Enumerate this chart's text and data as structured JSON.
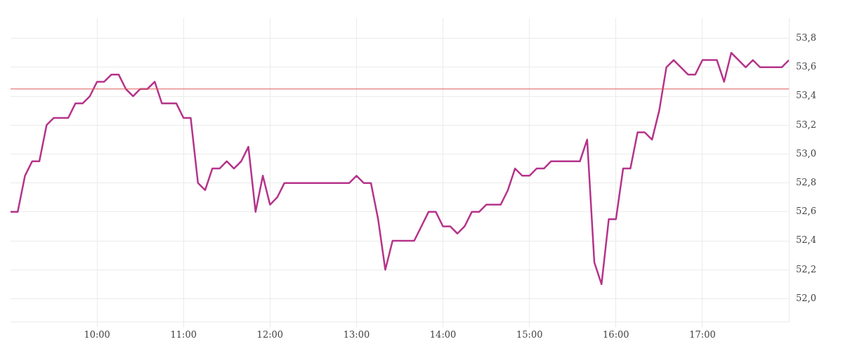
{
  "chart_data": {
    "type": "line",
    "x": [
      9,
      9.083,
      9.167,
      9.25,
      9.333,
      9.417,
      9.5,
      9.583,
      9.667,
      9.75,
      9.833,
      9.917,
      10,
      10.083,
      10.167,
      10.25,
      10.333,
      10.417,
      10.5,
      10.583,
      10.667,
      10.75,
      10.833,
      10.917,
      11,
      11.083,
      11.167,
      11.25,
      11.333,
      11.417,
      11.5,
      11.583,
      11.667,
      11.75,
      11.833,
      11.917,
      12,
      12.083,
      12.167,
      12.25,
      12.333,
      12.417,
      12.5,
      12.583,
      12.667,
      12.75,
      12.833,
      12.917,
      13,
      13.083,
      13.167,
      13.25,
      13.333,
      13.417,
      13.5,
      13.583,
      13.667,
      13.75,
      13.833,
      13.917,
      14,
      14.083,
      14.167,
      14.25,
      14.333,
      14.417,
      14.5,
      14.583,
      14.667,
      14.75,
      14.833,
      14.917,
      15,
      15.083,
      15.167,
      15.25,
      15.333,
      15.417,
      15.5,
      15.583,
      15.667,
      15.75,
      15.833,
      15.917,
      16,
      16.083,
      16.167,
      16.25,
      16.333,
      16.417,
      16.5,
      16.583,
      16.667,
      16.75,
      16.833,
      16.917,
      17,
      17.083,
      17.167,
      17.25,
      17.333,
      17.417,
      17.5,
      17.583,
      17.667,
      17.75,
      17.833,
      17.917,
      18
    ],
    "series": [
      {
        "color": "#b5338a",
        "values": [
          52.6,
          52.6,
          52.85,
          52.95,
          52.95,
          53.2,
          53.25,
          53.25,
          53.25,
          53.35,
          53.35,
          53.4,
          53.5,
          53.5,
          53.55,
          53.55,
          53.45,
          53.4,
          53.45,
          53.45,
          53.5,
          53.35,
          53.35,
          53.35,
          53.25,
          53.25,
          52.8,
          52.75,
          52.9,
          52.9,
          52.95,
          52.9,
          52.95,
          53.05,
          52.6,
          52.85,
          52.65,
          52.7,
          52.8,
          52.8,
          52.8,
          52.8,
          52.8,
          52.8,
          52.8,
          52.8,
          52.8,
          52.8,
          52.85,
          52.8,
          52.8,
          52.55,
          52.2,
          52.4,
          52.4,
          52.4,
          52.4,
          52.5,
          52.6,
          52.6,
          52.5,
          52.5,
          52.45,
          52.5,
          52.6,
          52.6,
          52.65,
          52.65,
          52.65,
          52.75,
          52.9,
          52.85,
          52.85,
          52.9,
          52.9,
          52.95,
          52.95,
          52.95,
          52.95,
          52.95,
          53.1,
          52.25,
          52.1,
          52.55,
          52.55,
          52.9,
          52.9,
          53.15,
          53.15,
          53.1,
          53.3,
          53.6,
          53.65,
          53.6,
          53.55,
          53.55,
          53.65,
          53.65,
          53.65,
          53.5,
          53.7,
          53.65,
          53.6,
          53.65,
          53.6,
          53.6,
          53.6,
          53.6,
          53.65
        ]
      }
    ],
    "xlim": [
      9,
      18
    ],
    "xticks": [
      {
        "value": 10,
        "label": "10:00"
      },
      {
        "value": 11,
        "label": "11:00"
      },
      {
        "value": 12,
        "label": "12:00"
      },
      {
        "value": 13,
        "label": "13:00"
      },
      {
        "value": 14,
        "label": "14:00"
      },
      {
        "value": 15,
        "label": "15:00"
      },
      {
        "value": 16,
        "label": "16:00"
      },
      {
        "value": 17,
        "label": "17:00"
      }
    ],
    "ylim": [
      51.84,
      53.94
    ],
    "yticks": [
      {
        "value": 52,
        "label": "52,0"
      },
      {
        "value": 52.2,
        "label": "52,2"
      },
      {
        "value": 52.4,
        "label": "52,4"
      },
      {
        "value": 52.6,
        "label": "52,6"
      },
      {
        "value": 52.8,
        "label": "52,8"
      },
      {
        "value": 53,
        "label": "53,0"
      },
      {
        "value": 53.2,
        "label": "53,2"
      },
      {
        "value": 53.4,
        "label": "53,4"
      },
      {
        "value": 53.6,
        "label": "53,6"
      },
      {
        "value": 53.8,
        "label": "53,8"
      }
    ],
    "ref_lines": [
      {
        "axis": "y",
        "value": 53.45,
        "color": "#e05a5a"
      }
    ],
    "grid": true,
    "legend": false,
    "marker": "none",
    "line_style": "solid"
  }
}
